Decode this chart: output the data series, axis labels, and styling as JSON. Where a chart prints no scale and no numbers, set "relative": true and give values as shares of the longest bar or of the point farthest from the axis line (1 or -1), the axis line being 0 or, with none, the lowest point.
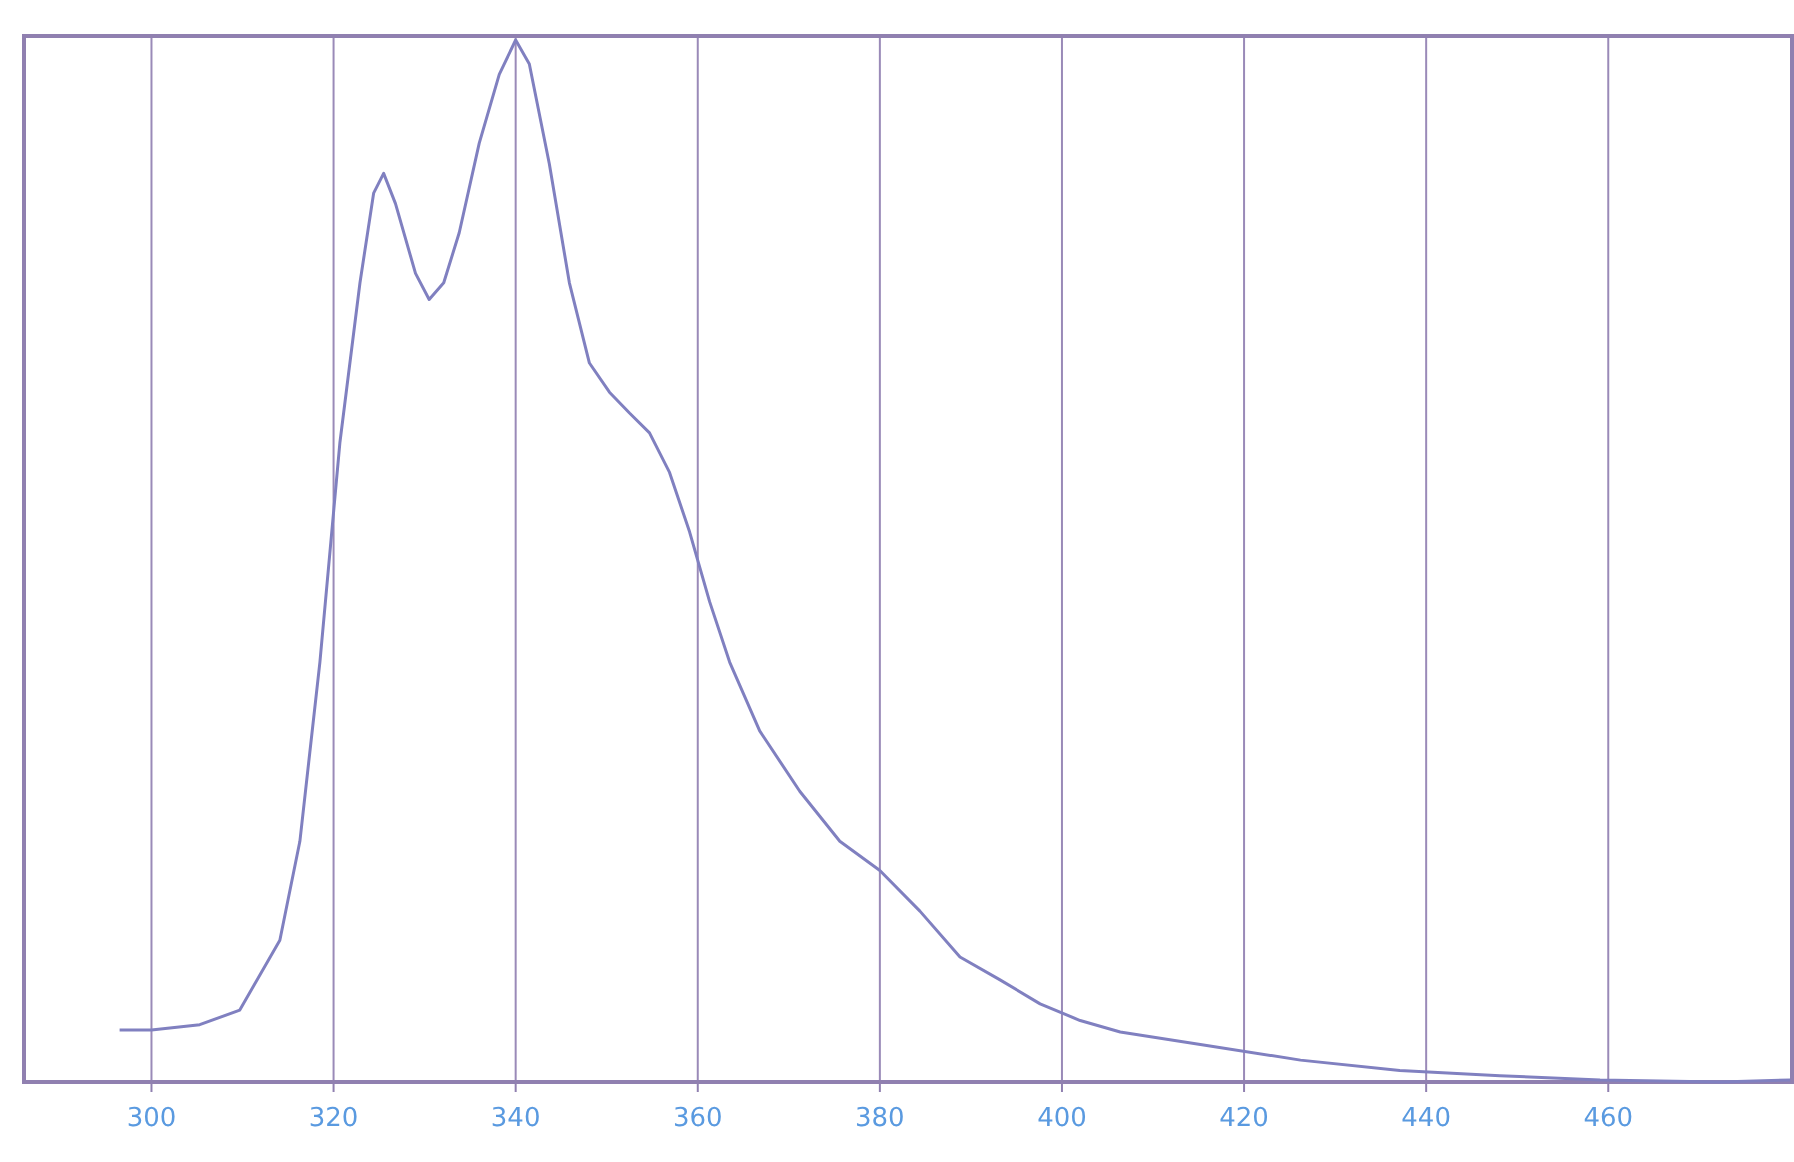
{
  "chart_data": {
    "type": "line",
    "relative": true,
    "x": [
      296.5,
      300,
      305.3,
      309.7,
      314.1,
      316.3,
      318.5,
      320.7,
      322.9,
      324.4,
      325.5,
      326.8,
      329,
      330.5,
      332.1,
      333.8,
      336,
      338.2,
      340,
      341.5,
      343.7,
      345.9,
      348.1,
      350.3,
      352.5,
      354.7,
      356.9,
      359.1,
      361.3,
      363.5,
      366.8,
      371.2,
      375.6,
      380,
      384.4,
      388.8,
      393.2,
      397.6,
      402,
      406.4,
      415.2,
      426.2,
      437.1,
      448.1,
      459.1,
      472.3,
      480
    ],
    "series": [
      {
        "color": "#8080c0",
        "values": [
          0.05,
          0.05,
          0.055,
          0.069,
          0.136,
          0.231,
          0.403,
          0.614,
          0.767,
          0.853,
          0.872,
          0.843,
          0.776,
          0.751,
          0.767,
          0.815,
          0.901,
          0.967,
          1,
          0.977,
          0.881,
          0.767,
          0.69,
          0.662,
          0.642,
          0.623,
          0.585,
          0.528,
          0.461,
          0.403,
          0.337,
          0.279,
          0.231,
          0.203,
          0.164,
          0.12,
          0.098,
          0.075,
          0.059,
          0.048,
          0.036,
          0.021,
          0.011,
          0.006,
          0.002,
          0,
          0.002
        ]
      }
    ],
    "xlim": [
      286,
      480.4
    ],
    "xticks": [
      300,
      320,
      340,
      360,
      380,
      400,
      420,
      440,
      460
    ],
    "grid": "x",
    "marker": "none",
    "line_style": "solid"
  }
}
